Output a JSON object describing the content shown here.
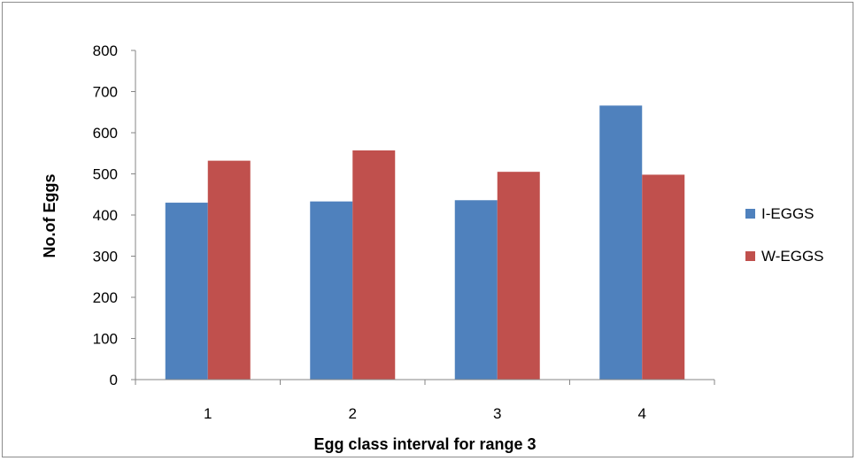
{
  "chart_data": {
    "type": "bar",
    "title": "",
    "xlabel": "Egg class interval for range 3",
    "ylabel": "No.of Eggs",
    "categories": [
      "1",
      "2",
      "3",
      "4"
    ],
    "series": [
      {
        "name": "I-EGGS",
        "color": "#4f81bd",
        "values": [
          430,
          433,
          436,
          666
        ]
      },
      {
        "name": "W-EGGS",
        "color": "#c0504d",
        "values": [
          532,
          557,
          505,
          498
        ]
      }
    ],
    "ylim": [
      0,
      800
    ],
    "yticks": [
      "0",
      "100",
      "200",
      "300",
      "400",
      "500",
      "600",
      "700",
      "800"
    ],
    "grid": false,
    "legend": "right"
  }
}
